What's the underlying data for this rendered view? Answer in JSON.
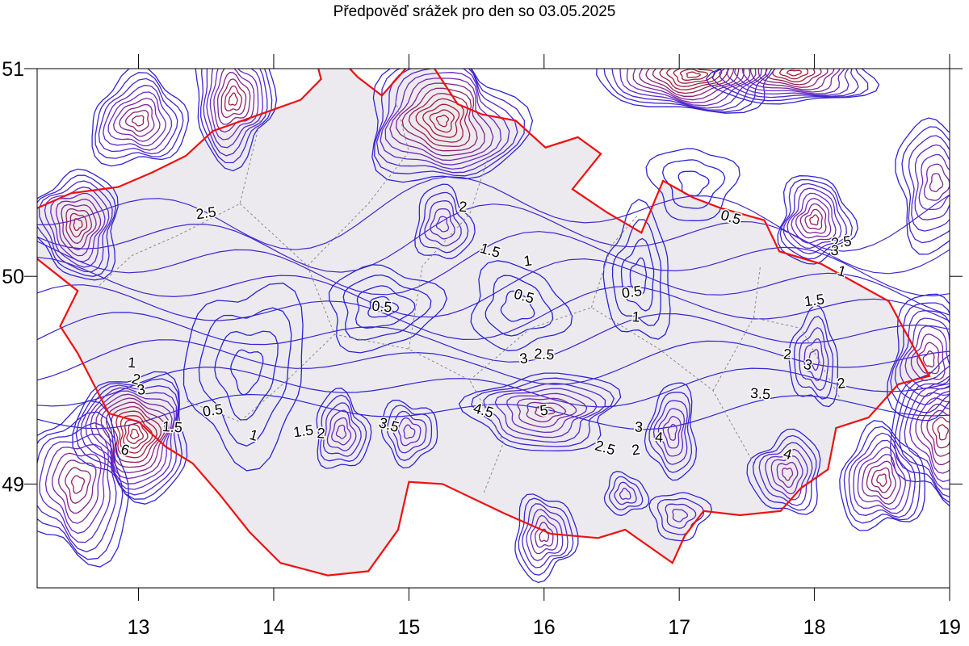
{
  "title": "Předpověď srážek pro den so 03.05.2025",
  "colors": {
    "low": "#2323d8",
    "mid": "#6a2ac4",
    "high": "#a11e3c",
    "border": "#ee1111",
    "land": "#eceaee",
    "region": "#8a8a8a"
  },
  "chart_data": {
    "type": "contour map",
    "title": "Předpověď srážek pro den so 03.05.2025",
    "x_ticks": [
      "13",
      "14",
      "15",
      "16",
      "17",
      "18",
      "19"
    ],
    "y_ticks": [
      "51",
      "50",
      "49"
    ],
    "xlim": [
      12.25,
      19.0
    ],
    "ylim": [
      48.5,
      51.0
    ],
    "contour_labels": [
      {
        "text": "2.5",
        "lon": 13.5,
        "lat": 50.3
      },
      {
        "text": "2",
        "lon": 15.4,
        "lat": 50.33
      },
      {
        "text": "1.5",
        "lon": 15.6,
        "lat": 50.12
      },
      {
        "text": "1",
        "lon": 15.88,
        "lat": 50.07
      },
      {
        "text": "0.5",
        "lon": 14.8,
        "lat": 49.85
      },
      {
        "text": "0.5",
        "lon": 15.85,
        "lat": 49.9
      },
      {
        "text": "0.5",
        "lon": 16.65,
        "lat": 49.92
      },
      {
        "text": "1",
        "lon": 16.68,
        "lat": 49.8
      },
      {
        "text": "0.5",
        "lon": 17.38,
        "lat": 50.28
      },
      {
        "text": "2.5",
        "lon": 18.2,
        "lat": 50.16
      },
      {
        "text": "3",
        "lon": 18.15,
        "lat": 50.12
      },
      {
        "text": "1",
        "lon": 18.2,
        "lat": 50.02
      },
      {
        "text": "1.5",
        "lon": 18.0,
        "lat": 49.88
      },
      {
        "text": "2",
        "lon": 17.8,
        "lat": 49.62
      },
      {
        "text": "3",
        "lon": 17.95,
        "lat": 49.57
      },
      {
        "text": "2",
        "lon": 18.2,
        "lat": 49.48
      },
      {
        "text": "3.5",
        "lon": 17.6,
        "lat": 49.43
      },
      {
        "text": "4",
        "lon": 17.8,
        "lat": 49.14
      },
      {
        "text": "3",
        "lon": 15.85,
        "lat": 49.6
      },
      {
        "text": "2.5",
        "lon": 16.0,
        "lat": 49.62
      },
      {
        "text": "4.5",
        "lon": 15.55,
        "lat": 49.35
      },
      {
        "text": "5",
        "lon": 16.0,
        "lat": 49.35
      },
      {
        "text": "3",
        "lon": 16.7,
        "lat": 49.27
      },
      {
        "text": "2.5",
        "lon": 16.45,
        "lat": 49.17
      },
      {
        "text": "2",
        "lon": 16.68,
        "lat": 49.16
      },
      {
        "text": "4",
        "lon": 16.85,
        "lat": 49.22
      },
      {
        "text": "3.5",
        "lon": 14.85,
        "lat": 49.28
      },
      {
        "text": "1.5",
        "lon": 14.22,
        "lat": 49.25
      },
      {
        "text": "2",
        "lon": 14.35,
        "lat": 49.24
      },
      {
        "text": "1",
        "lon": 13.85,
        "lat": 49.23
      },
      {
        "text": "0.5",
        "lon": 13.55,
        "lat": 49.35
      },
      {
        "text": "1",
        "lon": 12.95,
        "lat": 49.58
      },
      {
        "text": "2",
        "lon": 12.98,
        "lat": 49.5
      },
      {
        "text": "3",
        "lon": 13.02,
        "lat": 49.45
      },
      {
        "text": "1.5",
        "lon": 13.25,
        "lat": 49.27
      },
      {
        "text": "6",
        "lon": 12.9,
        "lat": 49.16
      }
    ],
    "rain_peaks": [
      {
        "lon": 13.0,
        "lat": 50.75,
        "rings": 9,
        "rx": 0.35,
        "ry": 0.22
      },
      {
        "lon": 13.7,
        "lat": 50.85,
        "rings": 10,
        "rx": 0.3,
        "ry": 0.28
      },
      {
        "lon": 12.55,
        "lat": 50.25,
        "rings": 10,
        "rx": 0.32,
        "ry": 0.25
      },
      {
        "lon": 15.25,
        "lat": 50.75,
        "rings": 13,
        "rx": 0.55,
        "ry": 0.32
      },
      {
        "lon": 15.25,
        "lat": 50.25,
        "rings": 5,
        "rx": 0.2,
        "ry": 0.18
      },
      {
        "lon": 17.1,
        "lat": 50.97,
        "rings": 14,
        "rx": 0.65,
        "ry": 0.18
      },
      {
        "lon": 17.85,
        "lat": 50.98,
        "rings": 12,
        "rx": 0.6,
        "ry": 0.15
      },
      {
        "lon": 18.0,
        "lat": 50.27,
        "rings": 9,
        "rx": 0.28,
        "ry": 0.2
      },
      {
        "lon": 12.97,
        "lat": 49.24,
        "rings": 14,
        "rx": 0.4,
        "ry": 0.3
      },
      {
        "lon": 18.95,
        "lat": 49.25,
        "rings": 10,
        "rx": 0.35,
        "ry": 0.35
      },
      {
        "lon": 18.5,
        "lat": 49.02,
        "rings": 9,
        "rx": 0.3,
        "ry": 0.25
      },
      {
        "lon": 16.0,
        "lat": 48.75,
        "rings": 7,
        "rx": 0.22,
        "ry": 0.2
      },
      {
        "lon": 16.0,
        "lat": 49.35,
        "rings": 8,
        "rx": 0.55,
        "ry": 0.18
      },
      {
        "lon": 16.95,
        "lat": 49.25,
        "rings": 6,
        "rx": 0.18,
        "ry": 0.22
      },
      {
        "lon": 14.5,
        "lat": 49.25,
        "rings": 6,
        "rx": 0.2,
        "ry": 0.18
      },
      {
        "lon": 15.0,
        "lat": 49.25,
        "rings": 5,
        "rx": 0.2,
        "ry": 0.15
      },
      {
        "lon": 17.8,
        "lat": 49.05,
        "rings": 7,
        "rx": 0.25,
        "ry": 0.2
      },
      {
        "lon": 18.85,
        "lat": 49.6,
        "rings": 8,
        "rx": 0.3,
        "ry": 0.3
      },
      {
        "lon": 18.9,
        "lat": 50.45,
        "rings": 7,
        "rx": 0.3,
        "ry": 0.3
      },
      {
        "lon": 12.55,
        "lat": 49.0,
        "rings": 9,
        "rx": 0.4,
        "ry": 0.35
      },
      {
        "lon": 18.0,
        "lat": 49.6,
        "rings": 5,
        "rx": 0.18,
        "ry": 0.22
      },
      {
        "lon": 16.6,
        "lat": 48.95,
        "rings": 4,
        "rx": 0.15,
        "ry": 0.1
      },
      {
        "lon": 17.0,
        "lat": 48.85,
        "rings": 4,
        "rx": 0.2,
        "ry": 0.12
      }
    ],
    "low_areas": [
      {
        "lon": 14.8,
        "lat": 49.85,
        "rings": 4,
        "rx": 0.4,
        "ry": 0.2
      },
      {
        "lon": 13.8,
        "lat": 49.55,
        "rings": 4,
        "rx": 0.45,
        "ry": 0.4
      },
      {
        "lon": 16.7,
        "lat": 50.0,
        "rings": 4,
        "rx": 0.25,
        "ry": 0.3
      },
      {
        "lon": 15.8,
        "lat": 49.85,
        "rings": 3,
        "rx": 0.35,
        "ry": 0.2
      },
      {
        "lon": 17.1,
        "lat": 50.45,
        "rings": 3,
        "rx": 0.3,
        "ry": 0.18
      }
    ]
  }
}
